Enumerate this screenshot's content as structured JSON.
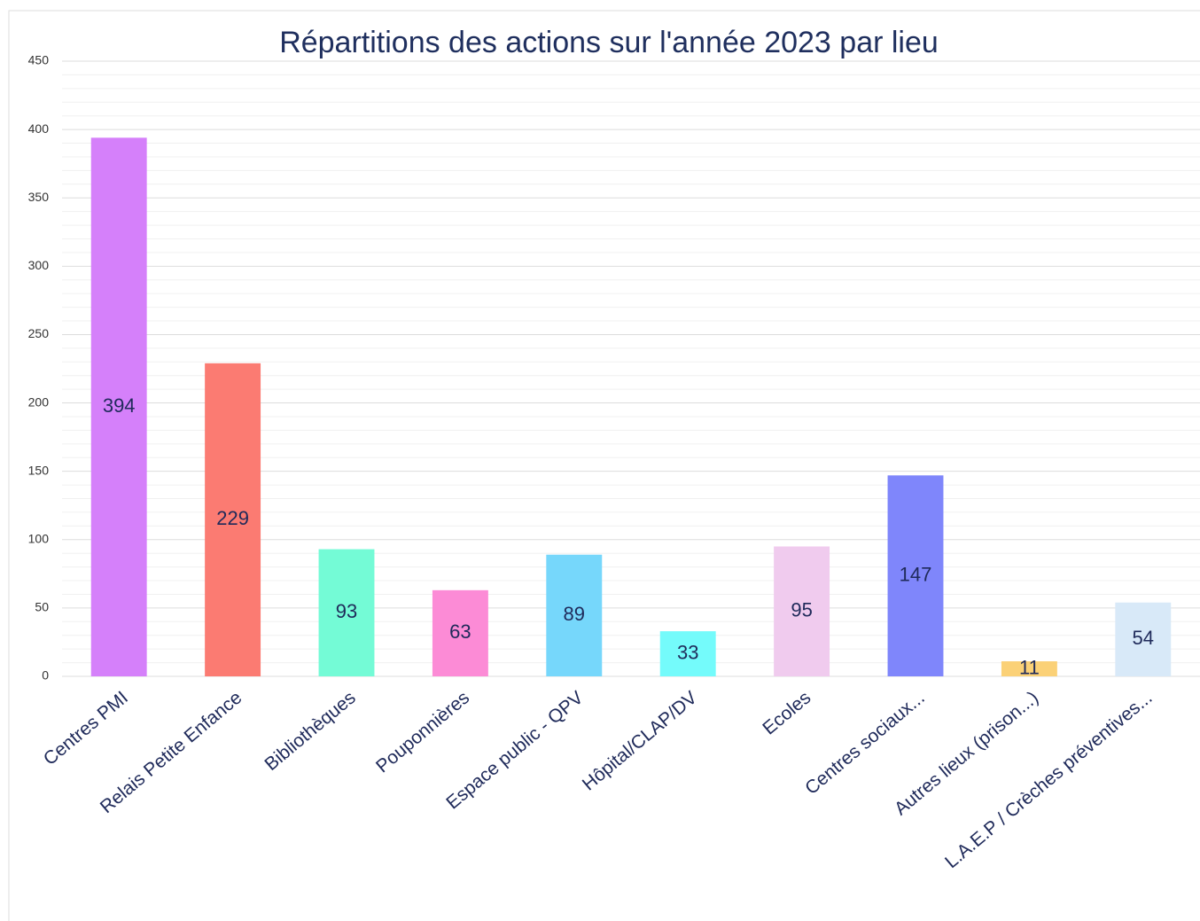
{
  "chart_data": {
    "type": "bar",
    "title": "Répartitions des actions sur l'année 2023 par lieu",
    "categories": [
      "Centres PMI",
      "Relais Petite Enfance",
      "Bibliothèques",
      "Pouponnières",
      "Espace public - QPV",
      "Hôpital/CLAP/DV",
      "Ecoles",
      "Centres sociaux...",
      "Autres lieux (prison...)",
      "L.A.E.P / Crèches préventives..."
    ],
    "values": [
      394,
      229,
      93,
      63,
      89,
      33,
      95,
      147,
      11,
      54
    ],
    "colors": [
      "#d580fa",
      "#fb7b72",
      "#74fbd6",
      "#fc8bd6",
      "#76d7fb",
      "#74fbfb",
      "#f0cbee",
      "#7f86fb",
      "#fbd177",
      "#d8e9f8"
    ],
    "ylim": [
      0,
      450
    ],
    "yticks": [
      0,
      50,
      100,
      150,
      200,
      250,
      300,
      350,
      400,
      450
    ],
    "grid": true,
    "minor_grid": true
  }
}
